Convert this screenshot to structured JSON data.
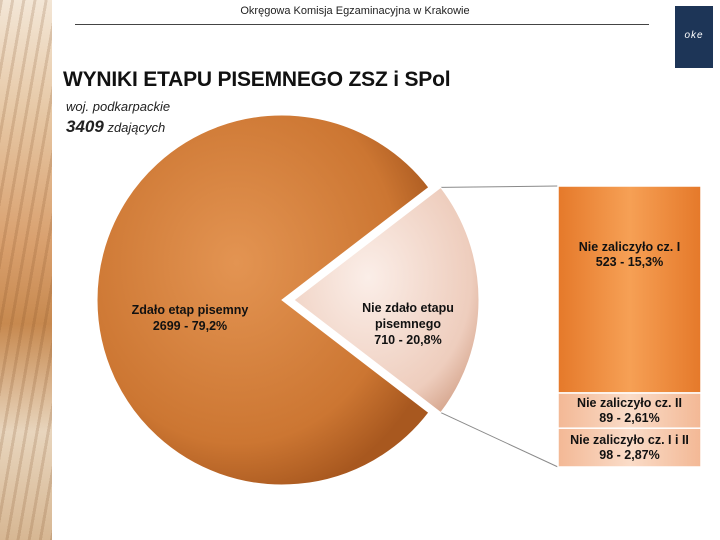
{
  "header": {
    "text": "Okręgowa Komisja Egzaminacyjna w Krakowie",
    "logo_text": "oke"
  },
  "title": "WYNIKI ETAPU PISEMNEGO ZSZ i SPol",
  "subtitle": "woj. podkarpackie",
  "count": {
    "number": "3409",
    "unit": "zdających"
  },
  "colors": {
    "main": "#cf7a35",
    "light": "#f2d9cc",
    "bar": "#f08a36",
    "bar_light": "#f5c9b0"
  },
  "chart_data": {
    "type": "pie",
    "pie": {
      "slices": [
        {
          "label_lines": [
            "Zdało etap pisemny",
            "2699 - 79,2%"
          ],
          "value": 2699,
          "percent": 79.2
        },
        {
          "label_lines": [
            "Nie zdało etapu",
            "pisemnego",
            "710 - 20,8%"
          ],
          "value": 710,
          "percent": 20.8
        }
      ]
    },
    "breakdown_bar": {
      "segments": [
        {
          "label_lines": [
            "Nie zaliczyło cz. I",
            "523 - 15,3%"
          ],
          "value": 523,
          "percent": 15.3
        },
        {
          "label_lines": [
            "Nie zaliczyło cz. II",
            "89 - 2,61%"
          ],
          "value": 89,
          "percent": 2.61
        },
        {
          "label_lines": [
            "Nie zaliczyło cz. I i II",
            "98 - 2,87%"
          ],
          "value": 98,
          "percent": 2.87
        }
      ]
    }
  }
}
